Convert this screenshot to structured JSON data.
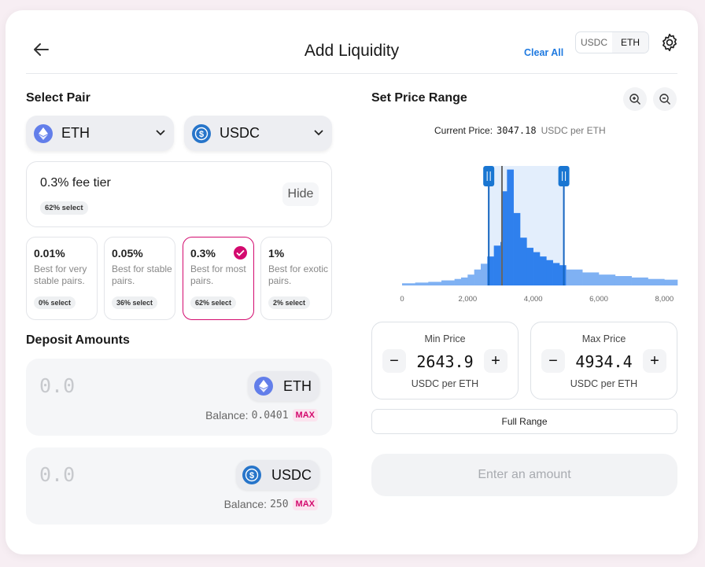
{
  "header": {
    "title": "Add Liquidity",
    "clear_all": "Clear All",
    "toggle": [
      "USDC",
      "ETH"
    ]
  },
  "select_pair": {
    "heading": "Select Pair",
    "token_a": "ETH",
    "token_b": "USDC"
  },
  "fee_tier": {
    "selected_label": "0.3% fee tier",
    "selected_pill": "62% select",
    "hide": "Hide",
    "options": [
      {
        "pct": "0.01%",
        "desc": "Best for very stable pairs.",
        "select": "0% select"
      },
      {
        "pct": "0.05%",
        "desc": "Best for stable pairs.",
        "select": "36% select"
      },
      {
        "pct": "0.3%",
        "desc": "Best for most pairs.",
        "select": "62% select"
      },
      {
        "pct": "1%",
        "desc": "Best for exotic pairs.",
        "select": "2% select"
      }
    ]
  },
  "deposit": {
    "heading": "Deposit Amounts",
    "items": [
      {
        "amount": "0.0",
        "token": "ETH",
        "balance_label": "Balance:",
        "balance": "0.0401",
        "max": "MAX"
      },
      {
        "amount": "0.0",
        "token": "USDC",
        "balance_label": "Balance:",
        "balance": "250",
        "max": "MAX"
      }
    ]
  },
  "price_range": {
    "heading": "Set Price Range",
    "current_label": "Current Price:",
    "current_value": "3047.18",
    "current_unit": "USDC per ETH",
    "min": {
      "label": "Min Price",
      "value": "2643.9",
      "unit": "USDC per ETH"
    },
    "max": {
      "label": "Max Price",
      "value": "4934.4",
      "unit": "USDC per ETH"
    },
    "full_range": "Full Range",
    "enter_amount": "Enter an amount"
  },
  "colors": {
    "accent_pink": "#d30a6e",
    "link_blue": "#1f7ae0",
    "bar_in_range": "#2f80ed",
    "bar_out_range": "#7fb1f3"
  },
  "chart_data": {
    "type": "area",
    "xlabel": "",
    "ylabel": "",
    "xlim": [
      0,
      8000
    ],
    "x_ticks": [
      "0",
      "2,000",
      "4,000",
      "6,000",
      "8,000"
    ],
    "current_price": 3047.18,
    "range_min": 2643.9,
    "range_max": 4934.4,
    "x": [
      0,
      400,
      800,
      1200,
      1600,
      1800,
      2000,
      2200,
      2400,
      2600,
      2800,
      3000,
      3050,
      3200,
      3400,
      3600,
      3800,
      4000,
      4200,
      4400,
      4600,
      4800,
      5000,
      5500,
      6000,
      6500,
      7000,
      7500,
      8000,
      8400
    ],
    "values": [
      3,
      4,
      5,
      7,
      9,
      11,
      15,
      22,
      30,
      40,
      55,
      60,
      130,
      160,
      100,
      66,
      52,
      46,
      40,
      35,
      31,
      28,
      22,
      18,
      15,
      13,
      11,
      9,
      8,
      7
    ]
  }
}
